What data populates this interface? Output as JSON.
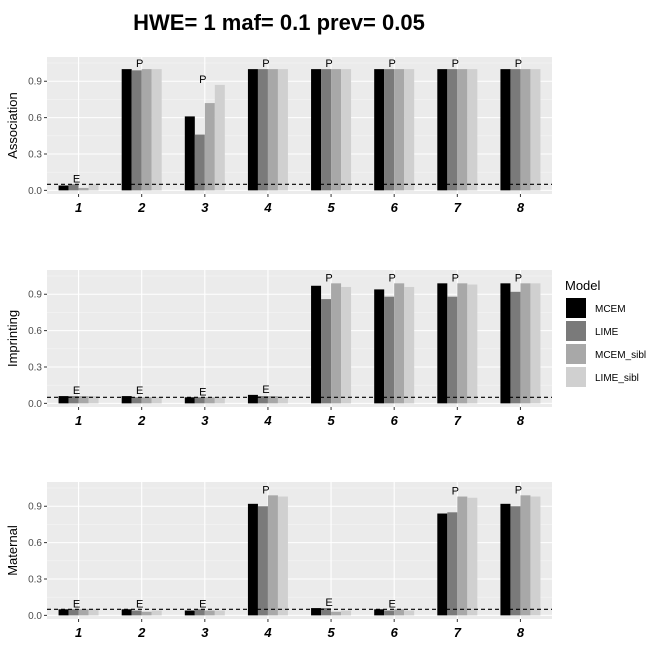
{
  "chart_data": {
    "type": "bar",
    "title": "HWE= 1 maf= 0.1 prev= 0.05",
    "legend": {
      "title": "Model",
      "position": "right",
      "items": [
        {
          "name": "MCEM",
          "color": "#000000"
        },
        {
          "name": "LIME",
          "color": "#7a7a7a"
        },
        {
          "name": "MCEM_sibl",
          "color": "#a8a8a8"
        },
        {
          "name": "LIME_sibl",
          "color": "#d0d0d0"
        }
      ]
    },
    "reference_line": 0.05,
    "grid": true,
    "panels": [
      {
        "ylabel": "Association",
        "categories": [
          "1",
          "2",
          "3",
          "4",
          "5",
          "6",
          "7",
          "8"
        ],
        "ylim": [
          -0.03,
          1.1
        ],
        "yticks": [
          "0.0",
          "0.3",
          "0.6",
          "0.9"
        ],
        "series": [
          {
            "name": "MCEM",
            "values": [
              0.04,
              1.0,
              0.61,
              1.0,
              1.0,
              1.0,
              1.0,
              1.0
            ]
          },
          {
            "name": "LIME",
            "values": [
              0.05,
              0.99,
              0.46,
              1.0,
              1.0,
              1.0,
              1.0,
              1.0
            ]
          },
          {
            "name": "MCEM_sibl",
            "values": [
              0.02,
              1.0,
              0.72,
              1.0,
              1.0,
              1.0,
              1.0,
              1.0
            ]
          },
          {
            "name": "LIME_sibl",
            "values": [
              0.05,
              1.0,
              0.87,
              1.0,
              1.0,
              1.0,
              1.0,
              1.0
            ]
          }
        ],
        "annotations": [
          "E",
          "P",
          "P",
          "P",
          "P",
          "P",
          "P",
          "P"
        ]
      },
      {
        "ylabel": "Imprinting",
        "categories": [
          "1",
          "2",
          "3",
          "4",
          "5",
          "6",
          "7",
          "8"
        ],
        "ylim": [
          -0.03,
          1.1
        ],
        "yticks": [
          "0.0",
          "0.3",
          "0.6",
          "0.9"
        ],
        "series": [
          {
            "name": "MCEM",
            "values": [
              0.06,
              0.06,
              0.05,
              0.07,
              0.97,
              0.94,
              0.99,
              0.99
            ]
          },
          {
            "name": "LIME",
            "values": [
              0.06,
              0.05,
              0.05,
              0.06,
              0.86,
              0.88,
              0.88,
              0.92
            ]
          },
          {
            "name": "MCEM_sibl",
            "values": [
              0.06,
              0.05,
              0.05,
              0.06,
              0.99,
              0.99,
              0.99,
              0.99
            ]
          },
          {
            "name": "LIME_sibl",
            "values": [
              0.06,
              0.05,
              0.05,
              0.05,
              0.96,
              0.96,
              0.98,
              0.99
            ]
          }
        ],
        "annotations": [
          "E",
          "E",
          "E",
          "E",
          "P",
          "P",
          "P",
          "P"
        ]
      },
      {
        "ylabel": "Maternal",
        "categories": [
          "1",
          "2",
          "3",
          "4",
          "5",
          "6",
          "7",
          "8"
        ],
        "ylim": [
          -0.03,
          1.1
        ],
        "yticks": [
          "0.0",
          "0.3",
          "0.6",
          "0.9"
        ],
        "series": [
          {
            "name": "MCEM",
            "values": [
              0.05,
              0.05,
              0.04,
              0.92,
              0.06,
              0.05,
              0.84,
              0.92
            ]
          },
          {
            "name": "LIME",
            "values": [
              0.05,
              0.04,
              0.05,
              0.9,
              0.06,
              0.04,
              0.85,
              0.9
            ]
          },
          {
            "name": "MCEM_sibl",
            "values": [
              0.05,
              0.03,
              0.04,
              0.99,
              0.03,
              0.05,
              0.98,
              0.99
            ]
          },
          {
            "name": "LIME_sibl",
            "values": [
              0.05,
              0.04,
              0.04,
              0.98,
              0.04,
              0.04,
              0.97,
              0.98
            ]
          }
        ],
        "annotations": [
          "E",
          "E",
          "E",
          "P",
          "E",
          "E",
          "P",
          "P"
        ]
      }
    ]
  }
}
